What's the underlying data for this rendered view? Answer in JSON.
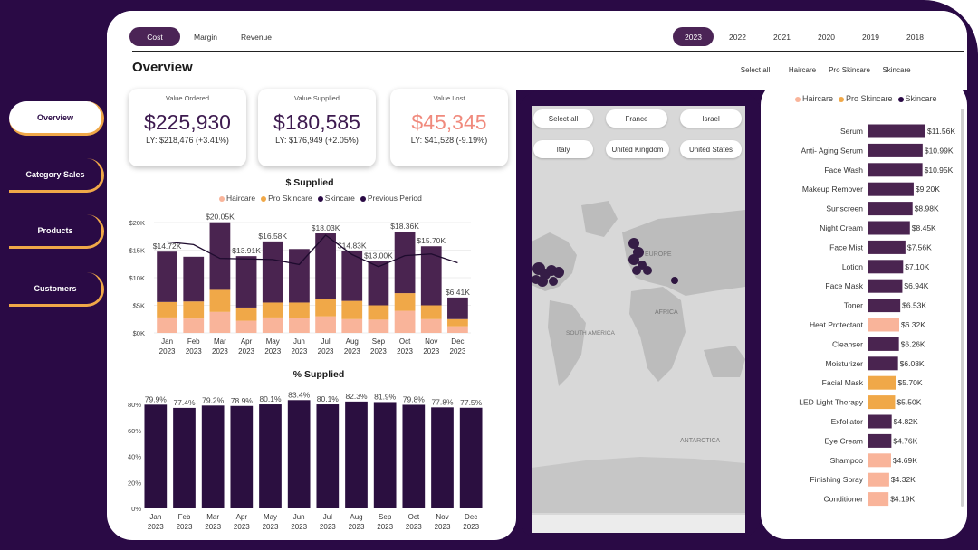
{
  "metric_tabs": [
    "Cost",
    "Margin",
    "Revenue"
  ],
  "active_metric": "Cost",
  "year_tabs": [
    "2023",
    "2022",
    "2021",
    "2020",
    "2019",
    "2018"
  ],
  "active_year": "2023",
  "page_title": "Overview",
  "category_filters": [
    "Select all",
    "Haircare",
    "Pro Skincare",
    "Skincare"
  ],
  "nav": [
    "Overview",
    "Category Sales",
    "Products",
    "Customers"
  ],
  "kpis": [
    {
      "label": "Value Ordered",
      "value": "$225,930",
      "ly": "LY: $218,476 (+3.41%)"
    },
    {
      "label": "Value Supplied",
      "value": "$180,585",
      "ly": "LY: $176,949 (+2.05%)"
    },
    {
      "label": "Value Lost",
      "value": "$45,345",
      "ly": "LY: $41,528 (-9.19%)"
    }
  ],
  "colors": {
    "haircare": "#f9b49a",
    "pro_skincare": "#f0a848",
    "skincare": "#4a2450",
    "bar_dark": "#2b0f40",
    "brand": "#2a0a45"
  },
  "map": {
    "filters": [
      "Select all",
      "France",
      "Israel",
      "Italy",
      "United Kingdom",
      "United States"
    ],
    "labels": [
      "EUROPE",
      "AFRICA",
      "SOUTH AMERICA",
      "ANTARCTICA"
    ]
  },
  "chart_data": [
    {
      "type": "bar",
      "stacked": true,
      "title": "$ Supplied",
      "legend": [
        "Haircare",
        "Pro Skincare",
        "Skincare",
        "Previous Period"
      ],
      "categories": [
        "Jan 2023",
        "Feb 2023",
        "Mar 2023",
        "Apr 2023",
        "May 2023",
        "Jun 2023",
        "Jul 2023",
        "Aug 2023",
        "Sep 2023",
        "Oct 2023",
        "Nov 2023",
        "Dec 2023"
      ],
      "month_labels": [
        "Jan",
        "Feb",
        "Mar",
        "Apr",
        "May",
        "Jun",
        "Jul",
        "Aug",
        "Sep",
        "Oct",
        "Nov",
        "Dec"
      ],
      "year_label": "2023",
      "yticks": [
        "$0K",
        "$5K",
        "$10K",
        "$15K",
        "$20K"
      ],
      "ylim": [
        0,
        20000
      ],
      "totals": [
        14720,
        13800,
        20050,
        13910,
        16580,
        15200,
        18030,
        14830,
        13000,
        18360,
        15700,
        6410
      ],
      "total_labels": [
        "$14.72K",
        "",
        "$20.05K",
        "$13.91K",
        "$16.58K",
        "",
        "$18.03K",
        "$14.83K",
        "$13.00K",
        "$18.36K",
        "$15.70K",
        "$6.41K"
      ],
      "series": [
        {
          "name": "Haircare",
          "values": [
            2800,
            2600,
            3800,
            2200,
            2800,
            2700,
            3000,
            2500,
            2400,
            4000,
            2500,
            1200
          ]
        },
        {
          "name": "Pro Skincare",
          "values": [
            2800,
            3100,
            4000,
            2400,
            2700,
            2800,
            3200,
            3300,
            2600,
            3200,
            2500,
            1300
          ]
        },
        {
          "name": "Skincare",
          "values": [
            9120,
            8100,
            12250,
            9310,
            11080,
            9700,
            11830,
            9030,
            8000,
            11160,
            10700,
            3910
          ]
        }
      ],
      "previous_period": [
        16500,
        16000,
        13500,
        13400,
        13300,
        12400,
        17700,
        14200,
        12000,
        14000,
        14300,
        12700
      ]
    },
    {
      "type": "bar",
      "title": "% Supplied",
      "categories": [
        "Jan 2023",
        "Feb 2023",
        "Mar 2023",
        "Apr 2023",
        "May 2023",
        "Jun 2023",
        "Jul 2023",
        "Aug 2023",
        "Sep 2023",
        "Oct 2023",
        "Nov 2023",
        "Dec 2023"
      ],
      "yticks": [
        "0%",
        "20%",
        "40%",
        "60%",
        "80%"
      ],
      "ylim": [
        0,
        80
      ],
      "values": [
        79.9,
        77.4,
        79.2,
        78.9,
        80.1,
        83.4,
        80.1,
        82.3,
        81.9,
        79.8,
        77.8,
        77.5
      ],
      "value_labels": [
        "79.9%",
        "77.4%",
        "79.2%",
        "78.9%",
        "80.1%",
        "83.4%",
        "80.1%",
        "82.3%",
        "81.9%",
        "79.8%",
        "77.8%",
        "77.5%"
      ]
    },
    {
      "type": "bar",
      "orientation": "horizontal",
      "legend": [
        "Haircare",
        "Pro Skincare",
        "Skincare"
      ],
      "categories": [
        "Serum",
        "Anti- Aging Serum",
        "Face Wash",
        "Makeup Remover",
        "Sunscreen",
        "Night Cream",
        "Face Mist",
        "Lotion",
        "Face Mask",
        "Toner",
        "Heat Protectant",
        "Cleanser",
        "Moisturizer",
        "Facial Mask",
        "LED Light Therapy",
        "Exfoliator",
        "Eye Cream",
        "Shampoo",
        "Finishing Spray",
        "Conditioner"
      ],
      "values": [
        11560,
        10990,
        10950,
        9200,
        8980,
        8450,
        7560,
        7100,
        6940,
        6530,
        6320,
        6260,
        6080,
        5700,
        5500,
        4820,
        4760,
        4690,
        4320,
        4190
      ],
      "value_labels": [
        "$11.56K",
        "$10.99K",
        "$10.95K",
        "$9.20K",
        "$8.98K",
        "$8.45K",
        "$7.56K",
        "$7.10K",
        "$6.94K",
        "$6.53K",
        "$6.32K",
        "$6.26K",
        "$6.08K",
        "$5.70K",
        "$5.50K",
        "$4.82K",
        "$4.76K",
        "$4.69K",
        "$4.32K",
        "$4.19K"
      ],
      "category_group": [
        "Skincare",
        "Skincare",
        "Skincare",
        "Skincare",
        "Skincare",
        "Skincare",
        "Skincare",
        "Skincare",
        "Skincare",
        "Skincare",
        "Haircare",
        "Skincare",
        "Skincare",
        "Pro Skincare",
        "Pro Skincare",
        "Skincare",
        "Skincare",
        "Haircare",
        "Haircare",
        "Haircare"
      ]
    }
  ]
}
